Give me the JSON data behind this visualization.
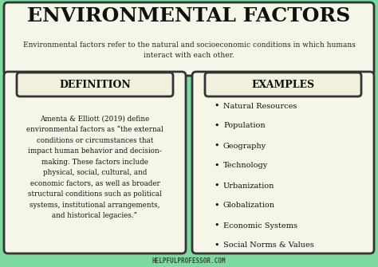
{
  "title": "ENVIRONMENTAL FACTORS",
  "subtitle": "Environmental factors refer to the natural and socioeconomic conditions in which humans\ninteract with each other.",
  "bg_color": "#7dd9a0",
  "box_color": "#f5f5e8",
  "header_color": "#f0f0dc",
  "title_font_color": "#111111",
  "subtitle_font_color": "#222222",
  "def_header": "DEFINITION",
  "ex_header": "EXAMPLES",
  "definition_text": "Amenta & Elliott (2019) define\nenvironmental factors as “the external\nconditions or circumstances that\nimpact human behavior and decision-\nmaking. These factors include\nphysical, social, cultural, and\neconomic factors, as well as broader\nstructural conditions such as political\nsystems, institutional arrangements,\nand historical legacies.”",
  "examples": [
    "Natural Resources",
    "Population",
    "Geography",
    "Technology",
    "Urbanization",
    "Globalization",
    "Economic Systems",
    "Social Norms & Values"
  ],
  "footer": "HELPFULPROFESSOR.COM",
  "border_color": "#333333"
}
